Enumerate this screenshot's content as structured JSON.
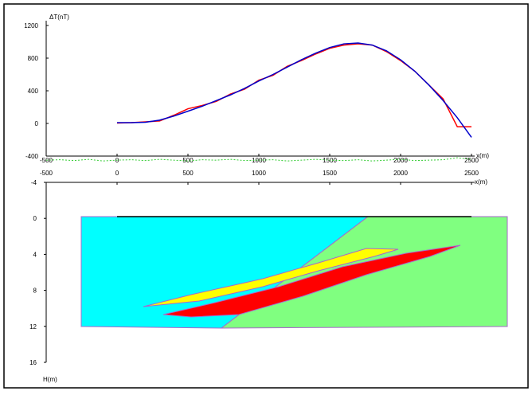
{
  "chart_data": [
    {
      "type": "line",
      "y_label": "ΔT(nT)",
      "x_label": "x(m)",
      "x": [
        -500,
        -400,
        -300,
        -200,
        -100,
        0,
        100,
        200,
        300,
        400,
        500,
        600,
        700,
        800,
        900,
        1000,
        1100,
        1200,
        1300,
        1400,
        1500,
        1600,
        1700,
        1800,
        1900,
        2000,
        2100,
        2200,
        2300,
        2400,
        2500
      ],
      "series": [
        {
          "color": "#ff0000",
          "values": [
            null,
            null,
            null,
            null,
            null,
            5,
            10,
            20,
            30,
            100,
            180,
            220,
            270,
            360,
            420,
            530,
            590,
            700,
            770,
            850,
            920,
            960,
            975,
            960,
            880,
            770,
            640,
            470,
            300,
            -40,
            -40
          ]
        },
        {
          "color": "#0000cc",
          "values": [
            null,
            null,
            null,
            null,
            null,
            10,
            10,
            15,
            40,
            90,
            150,
            210,
            280,
            350,
            430,
            520,
            600,
            690,
            780,
            860,
            930,
            975,
            985,
            960,
            890,
            780,
            640,
            470,
            280,
            70,
            -170
          ]
        },
        {
          "color": "#33cc33",
          "dashed": true,
          "values": [
            -450,
            -445,
            -455,
            -440,
            -460,
            -450,
            -445,
            -455,
            -440,
            -450,
            -460,
            -445,
            -450,
            -440,
            -455,
            -450,
            -445,
            -460,
            -450,
            -440,
            -450,
            -455,
            -445,
            -460,
            -450,
            -440,
            -455,
            -450,
            -445,
            -420,
            -440
          ]
        }
      ],
      "xlim": [
        -500,
        2500
      ],
      "xticks": [
        -500,
        0,
        500,
        1000,
        1500,
        2000,
        2500
      ],
      "ylim": [
        -400,
        1200
      ],
      "yticks": [
        -400,
        0,
        400,
        800,
        1200
      ]
    },
    {
      "type": "section",
      "y_label": "H(m)",
      "x_label": "x(m)",
      "xlim": [
        -500,
        2500
      ],
      "xticks": [
        -500,
        0,
        500,
        1000,
        1500,
        2000,
        2500
      ],
      "ylim": [
        -4,
        16
      ],
      "yticks": [
        -4,
        0,
        4,
        8,
        12,
        16
      ]
    }
  ]
}
